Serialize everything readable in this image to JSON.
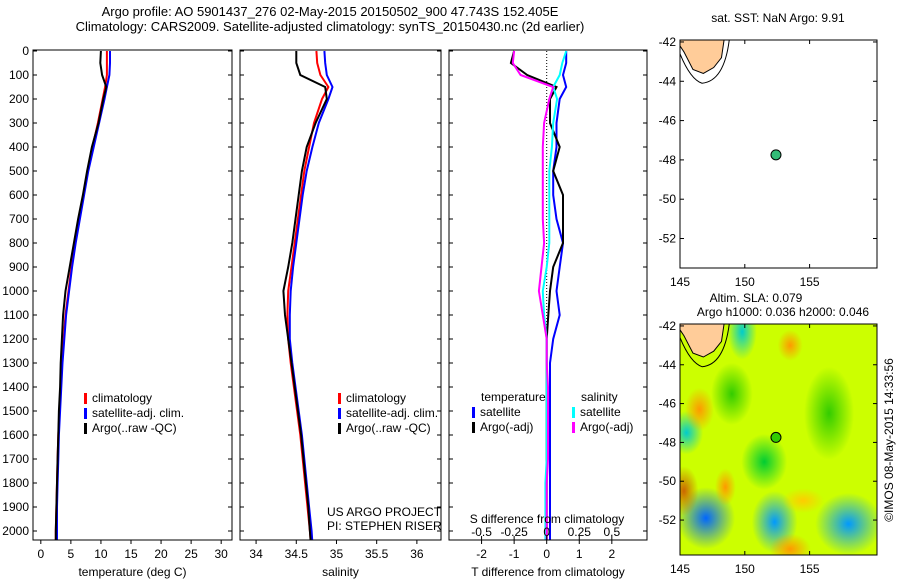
{
  "title_line1": "Argo profile: AO 5901437_276 02-May-2015 20150502_900 47.743S 152.405E",
  "title_line2": "Climatology: CARS2009. Satellite-adjusted climatology: synTS_20150430.nc (2d earlier)",
  "colors": {
    "climatology": "#ff0000",
    "satellite": "#0000ff",
    "argo": "#000000",
    "sal_satellite": "#00ffff",
    "sal_argo": "#ff00ff",
    "land": "#ffcc99"
  },
  "chart_data": [
    {
      "type": "line",
      "id": "temperature",
      "xlabel": "temperature (deg C)",
      "ylabel": "",
      "xlim": [
        -1.3,
        31.8
      ],
      "ylim": [
        2050,
        0
      ],
      "xticks": [
        0,
        5,
        10,
        15,
        20,
        25,
        30
      ],
      "yticks": [
        0,
        100,
        200,
        300,
        400,
        500,
        600,
        700,
        800,
        900,
        1000,
        1100,
        1200,
        1300,
        1400,
        1500,
        1600,
        1700,
        1800,
        1900,
        2000
      ],
      "legend": [
        "climatology",
        "satellite-adj. clim.",
        "Argo(..raw -QC)"
      ],
      "depth": [
        0,
        50,
        100,
        150,
        200,
        300,
        400,
        500,
        600,
        700,
        800,
        900,
        1000,
        1100,
        1200,
        1300,
        1400,
        1500,
        1600,
        1700,
        1800,
        1900,
        2000,
        2050
      ],
      "series": [
        {
          "name": "climatology",
          "values": [
            11,
            11,
            11,
            10.7,
            10.3,
            9.5,
            8.6,
            7.8,
            7.1,
            6.4,
            5.7,
            5.1,
            4.6,
            4.1,
            3.8,
            3.5,
            3.3,
            3.1,
            2.9,
            2.8,
            2.7,
            2.6,
            2.5,
            2.5
          ]
        },
        {
          "name": "satellite-adj. clim.",
          "values": [
            11.5,
            11.5,
            11.4,
            11,
            10.6,
            9.7,
            8.8,
            7.9,
            7.2,
            6.5,
            5.8,
            5.2,
            4.7,
            4.2,
            3.9,
            3.6,
            3.4,
            3.2,
            3.0,
            2.9,
            2.8,
            2.7,
            2.7,
            2.7
          ]
        },
        {
          "name": "Argo(..raw -QC)",
          "values": [
            10,
            9.9,
            10.2,
            10.9,
            10.4,
            9.6,
            8.5,
            7.7,
            7.0,
            6.2,
            5.5,
            4.8,
            4.1,
            3.7,
            3.5,
            3.3,
            3.2,
            3.0,
            2.9,
            2.8,
            2.7,
            2.6,
            2.5,
            2.5
          ]
        }
      ]
    },
    {
      "type": "line",
      "id": "salinity",
      "xlabel": "salinity",
      "xlim": [
        33.8,
        36.3
      ],
      "ylim": [
        2050,
        0
      ],
      "xticks": [
        34,
        34.5,
        35,
        35.5,
        36
      ],
      "legend": [
        "climatology",
        "satellite-adj. clim.",
        "Argo(..raw -QC)"
      ],
      "annotation": [
        "US ARGO PROJECT",
        "PI: STEPHEN RISER"
      ],
      "depth": [
        0,
        50,
        100,
        150,
        200,
        300,
        400,
        500,
        600,
        700,
        800,
        900,
        1000,
        1100,
        1200,
        1300,
        1400,
        1500,
        1600,
        1700,
        1800,
        1900,
        2000,
        2050
      ],
      "series": [
        {
          "name": "climatology",
          "values": [
            34.75,
            34.76,
            34.8,
            34.9,
            34.82,
            34.72,
            34.66,
            34.6,
            34.56,
            34.52,
            34.48,
            34.44,
            34.4,
            34.39,
            34.4,
            34.43,
            34.47,
            34.51,
            34.55,
            34.58,
            34.61,
            34.64,
            34.67,
            34.68
          ]
        },
        {
          "name": "satellite-adj. clim.",
          "values": [
            34.85,
            34.86,
            34.88,
            34.95,
            34.9,
            34.78,
            34.7,
            34.63,
            34.58,
            34.54,
            34.5,
            34.46,
            34.43,
            34.42,
            34.42,
            34.45,
            34.49,
            34.53,
            34.57,
            34.6,
            34.63,
            34.66,
            34.69,
            34.7
          ]
        },
        {
          "name": "Argo(..raw -QC)",
          "values": [
            34.5,
            34.5,
            34.55,
            34.86,
            34.88,
            34.74,
            34.63,
            34.57,
            34.53,
            34.49,
            34.45,
            34.4,
            34.34,
            34.36,
            34.4,
            34.44,
            34.48,
            34.52,
            34.56,
            34.59,
            34.62,
            34.65,
            34.67,
            34.68
          ]
        }
      ]
    },
    {
      "type": "line",
      "id": "difference",
      "xlabel": "T difference from climatology",
      "xlabel2": "S difference from climatology",
      "xlim": [
        -3,
        3.08
      ],
      "xticks": [
        -2,
        -1,
        0,
        1,
        2
      ],
      "x2ticks": [
        "-0.5",
        "-0.25",
        "0",
        "0.25",
        "0.5"
      ],
      "legend_t_title": "temperature",
      "legend_s_title": "salinity",
      "legend": [
        "satellite",
        "Argo(-adj)",
        "satellite",
        "Argo(-adj)"
      ],
      "depth": [
        0,
        50,
        100,
        150,
        200,
        300,
        400,
        500,
        600,
        700,
        800,
        900,
        1000,
        1100,
        1200,
        1300,
        1400,
        1500,
        1600,
        1700,
        1800,
        1900,
        2000,
        2050
      ],
      "series": [
        {
          "name": "T satellite",
          "values": [
            0.6,
            0.6,
            0.5,
            0.6,
            0.4,
            0.3,
            0.3,
            0.2,
            0.2,
            0.3,
            0.5,
            0.4,
            0.3,
            0.4,
            0.2,
            0.1,
            0.1,
            0.1,
            0.1,
            0.1,
            0.1,
            0.1,
            0.1,
            0.1
          ]
        },
        {
          "name": "T Argo(-adj)",
          "values": [
            -1,
            -1.1,
            -0.6,
            0.3,
            0.1,
            0.1,
            0.4,
            0.2,
            0.5,
            0.5,
            0.5,
            0.2,
            0.1,
            0.05,
            0,
            0,
            0,
            0,
            0,
            0,
            0,
            0,
            0,
            0
          ]
        },
        {
          "name": "S satellite",
          "values": [
            0.15,
            0.12,
            0.1,
            0.05,
            0.08,
            0.05,
            0.04,
            0.02,
            0.02,
            0.02,
            0.02,
            0.0,
            -0.03,
            -0.02,
            0,
            0,
            0,
            0,
            0,
            0,
            -0.01,
            -0.01,
            -0.01,
            -0.01
          ]
        },
        {
          "name": "S Argo(-adj)",
          "values": [
            -0.25,
            -0.26,
            -0.2,
            0.05,
            0.02,
            -0.02,
            -0.03,
            -0.03,
            -0.03,
            -0.03,
            -0.02,
            -0.04,
            -0.06,
            -0.03,
            0,
            0,
            0.01,
            0.01,
            0.01,
            0.01,
            0,
            0,
            0,
            0
          ]
        }
      ]
    },
    {
      "type": "scatter",
      "id": "sst_map",
      "title": "sat. SST: NaN Argo: 9.91",
      "xlim": [
        145,
        160.2
      ],
      "ylim": [
        -53.5,
        -41.9
      ],
      "xticks": [
        145,
        150,
        155
      ],
      "yticks": [
        -42,
        -44,
        -46,
        -48,
        -50,
        -52
      ],
      "point": {
        "lon": 152.405,
        "lat": -47.743
      }
    },
    {
      "type": "heatmap",
      "id": "sla_map",
      "title_line1": "Altim. SLA: 0.079",
      "title_line2": "Argo h1000: 0.036 h2000: 0.046",
      "xlim": [
        145,
        160.2
      ],
      "ylim": [
        -53.8,
        -41.9
      ],
      "xticks": [
        145,
        150,
        155
      ],
      "yticks": [
        -42,
        -44,
        -46,
        -48,
        -50,
        -52
      ],
      "point": {
        "lon": 152.405,
        "lat": -47.743
      },
      "credit": "©IMOS 08-May-2015 14:33:56"
    }
  ]
}
